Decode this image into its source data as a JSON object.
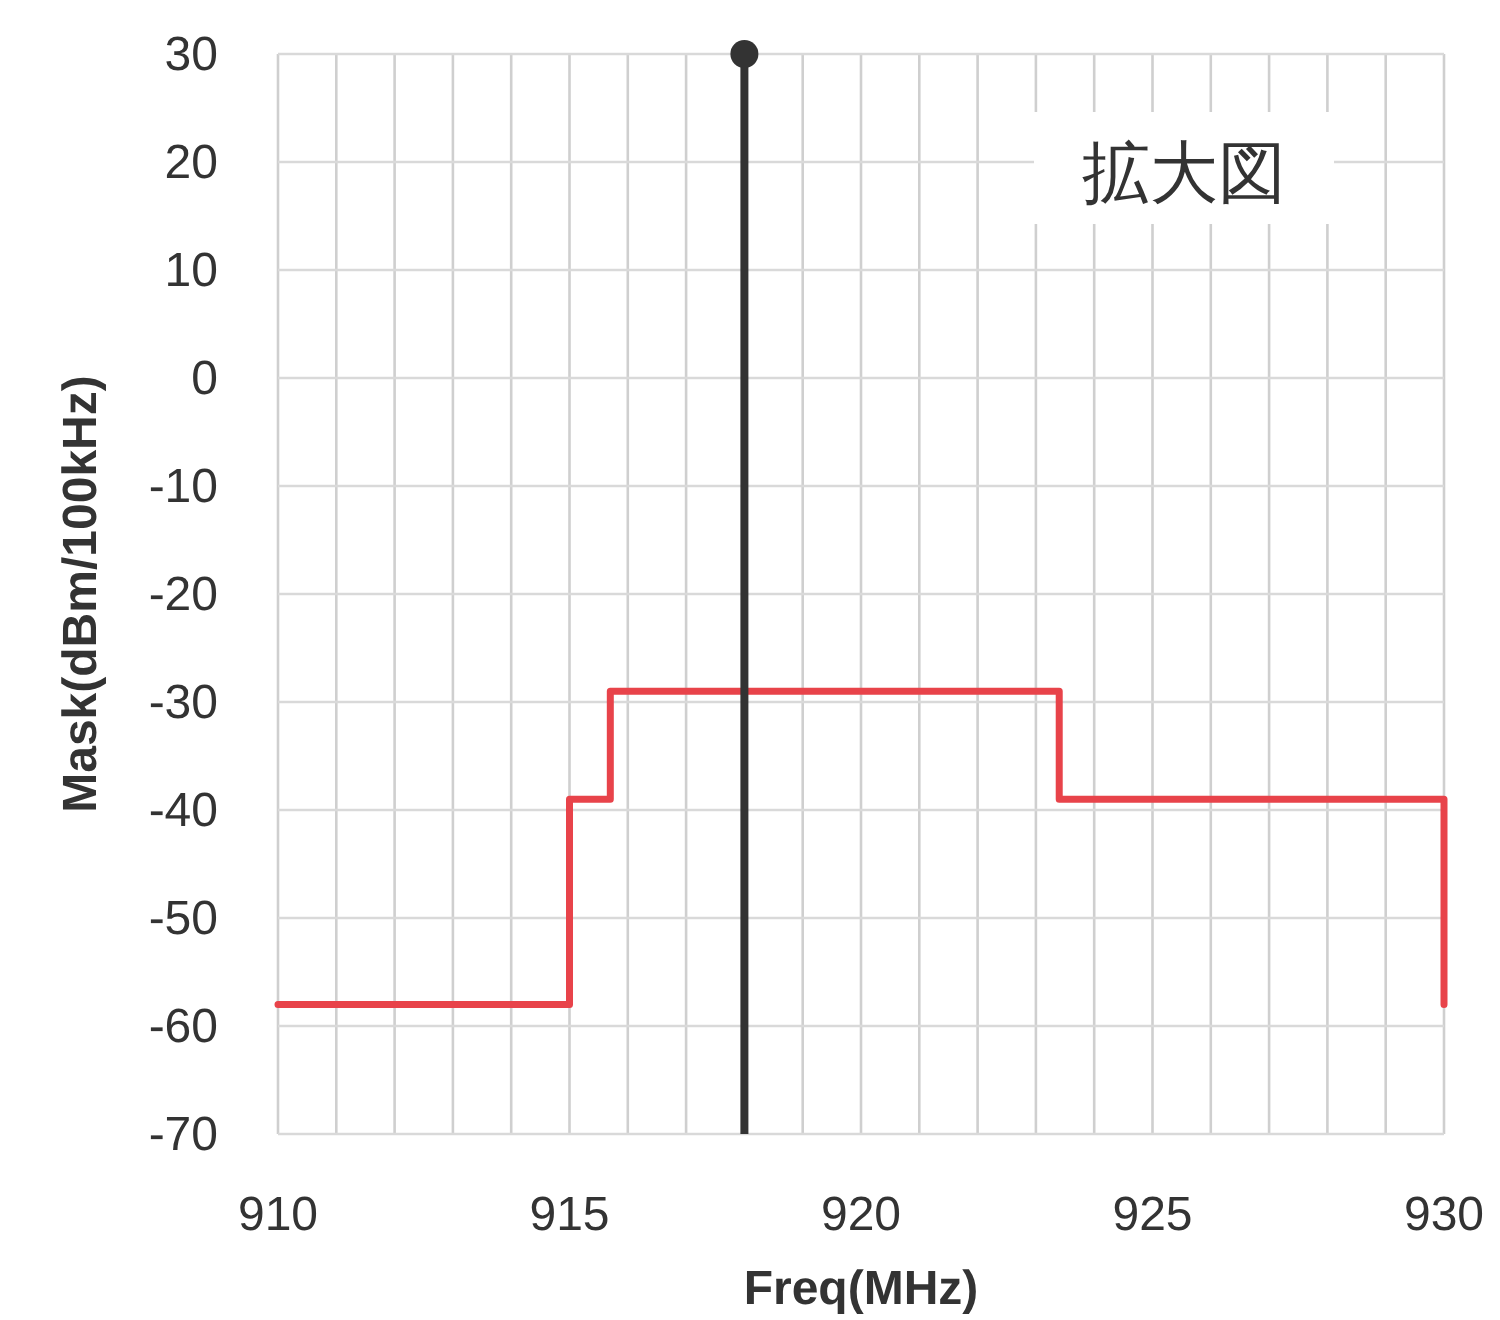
{
  "chart_data": {
    "type": "step",
    "xlabel": "Freq(MHz)",
    "ylabel": "Mask(dBm/100kHz)",
    "xlim": [
      910,
      930
    ],
    "xticks": [
      910,
      {
        "value": 911,
        "label": null
      },
      {
        "value": 912,
        "label": null
      },
      {
        "value": 913,
        "label": null
      },
      {
        "value": 914,
        "label": null
      },
      915,
      {
        "value": 916,
        "label": null
      },
      {
        "value": 917,
        "label": null
      },
      {
        "value": 918,
        "label": null
      },
      {
        "value": 919,
        "label": null
      },
      920,
      {
        "value": 921,
        "label": null
      },
      {
        "value": 922,
        "label": null
      },
      {
        "value": 923,
        "label": null
      },
      {
        "value": 924,
        "label": null
      },
      925,
      {
        "value": 926,
        "label": null
      },
      {
        "value": 927,
        "label": null
      },
      {
        "value": 928,
        "label": null
      },
      {
        "value": 929,
        "label": null
      },
      930
    ],
    "ylim": [
      -70,
      30
    ],
    "yticks": [
      -70,
      -60,
      -50,
      -40,
      -30,
      -20,
      -10,
      0,
      10,
      20,
      30
    ],
    "grid": true,
    "series": [
      {
        "color": "#e8434a",
        "x": [
          910,
          915,
          915.7,
          923.4,
          930
        ],
        "values": [
          -58,
          -39,
          -29,
          -39,
          -58
        ]
      },
      {
        "type": "scatter",
        "color": "#333333",
        "x": [
          918
        ],
        "values": [
          30
        ]
      }
    ],
    "ref_lines": [
      {
        "axis": "x",
        "value": 918,
        "color": "#333333"
      }
    ],
    "annotations": [
      "拡大図"
    ]
  }
}
